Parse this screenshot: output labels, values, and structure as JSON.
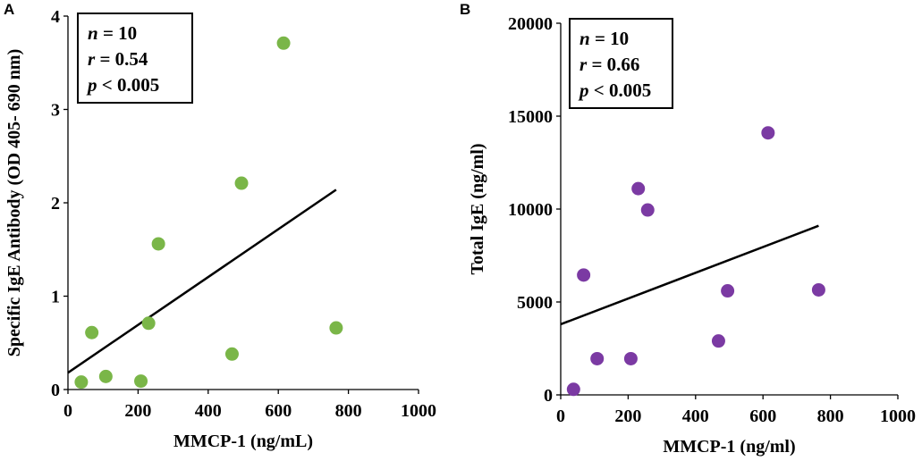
{
  "chart_data": [
    {
      "type": "scatter",
      "panel": "A",
      "title": "",
      "xlabel": "MMCP-1 (ng/mL)",
      "ylabel": "Specific IgE Antibody (OD 405- 690 nm)",
      "xlim": [
        0,
        1000
      ],
      "ylim": [
        0,
        4
      ],
      "xticks": [
        0,
        200,
        400,
        600,
        800,
        1000
      ],
      "yticks": [
        0,
        1,
        2,
        3,
        4
      ],
      "x": [
        38,
        68,
        108,
        208,
        230,
        258,
        468,
        495,
        615,
        765
      ],
      "y": [
        0.08,
        0.61,
        0.14,
        0.09,
        0.71,
        1.56,
        0.38,
        2.21,
        3.71,
        0.66
      ],
      "point_color": "#7ab648",
      "trendline": {
        "x": [
          0,
          765
        ],
        "y": [
          0.18,
          2.14
        ]
      },
      "grid": false,
      "legend": "none",
      "stats": {
        "n_label": "n",
        "n_value": " = 10",
        "r_label": "r",
        "r_value": " = 0.54",
        "p_label": "p",
        "p_value": " < 0.005"
      }
    },
    {
      "type": "scatter",
      "panel": "B",
      "title": "",
      "xlabel": "MMCP-1 (ng/ml)",
      "ylabel": "Total IgE (ng/ml)",
      "xlim": [
        0,
        1000
      ],
      "ylim": [
        0,
        20000
      ],
      "xticks": [
        0,
        200,
        400,
        600,
        800,
        1000
      ],
      "yticks": [
        0,
        5000,
        10000,
        15000,
        20000
      ],
      "x": [
        38,
        68,
        108,
        208,
        230,
        258,
        468,
        495,
        615,
        765
      ],
      "y": [
        300,
        6450,
        1950,
        1950,
        11100,
        9950,
        2900,
        5600,
        14100,
        5650
      ],
      "point_color": "#7b3aa3",
      "trendline": {
        "x": [
          0,
          765
        ],
        "y": [
          3800,
          9100
        ]
      },
      "grid": false,
      "legend": "none",
      "stats": {
        "n_label": "n",
        "n_value": " = 10",
        "r_label": "r",
        "r_value": " = 0.66",
        "p_label": "p",
        "p_value": " < 0.005"
      }
    }
  ]
}
